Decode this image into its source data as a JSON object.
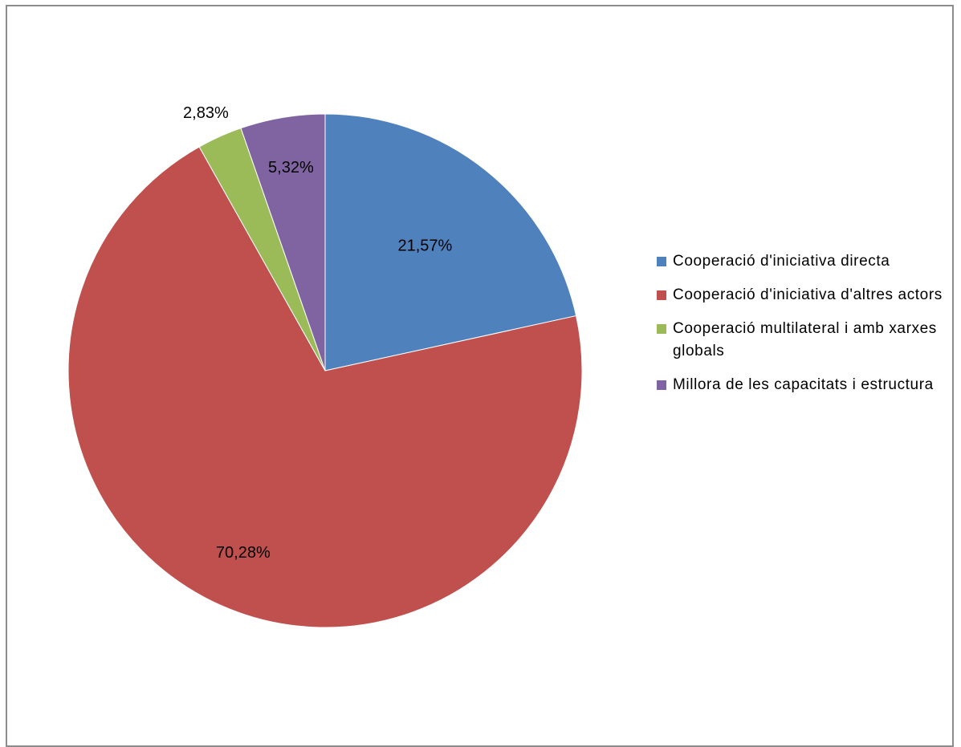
{
  "chart_data": {
    "type": "pie",
    "title": "",
    "start_angle_deg": 0,
    "direction": "clockwise",
    "slices": [
      {
        "label": "Cooperació d'iniciativa directa",
        "value": 21.57,
        "data_label": "21,57%",
        "color": "#4f81bd"
      },
      {
        "label": "Cooperació d'iniciativa d'altres actors",
        "value": 70.28,
        "data_label": "70,28%",
        "color": "#c0504d"
      },
      {
        "label": "Cooperació multilateral i amb xarxes globals",
        "value": 2.83,
        "data_label": "2,83%",
        "color": "#9bbb59"
      },
      {
        "label": "Millora de les capacitats i estructura",
        "value": 5.32,
        "data_label": "5,32%",
        "color": "#8064a2"
      }
    ],
    "legend": {
      "position": "right"
    }
  },
  "legend_items": [
    "Cooperació d'iniciativa directa",
    "Cooperació d'iniciativa d'altres actors",
    "Cooperació multilateral i amb xarxes globals",
    "Millora de les capacitats i estructura"
  ]
}
